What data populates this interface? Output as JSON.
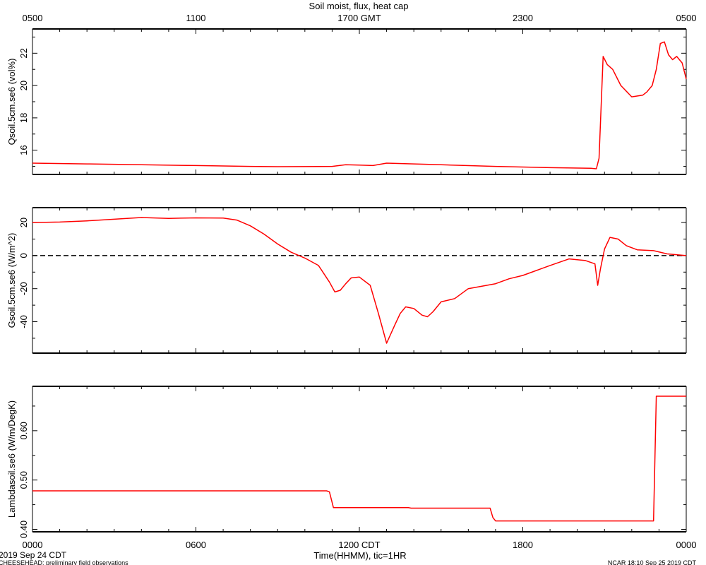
{
  "title": "Soil moist, flux, heat cap",
  "top_axis": {
    "ticks": [
      {
        "h": 0,
        "label": "0500"
      },
      {
        "h": 6,
        "label": "1100"
      },
      {
        "h": 12,
        "label": "1700 GMT"
      },
      {
        "h": 18,
        "label": "2300"
      },
      {
        "h": 24,
        "label": "0500"
      }
    ]
  },
  "bottom_axis": {
    "ticks": [
      {
        "h": 0,
        "label": "0000"
      },
      {
        "h": 6,
        "label": "0600"
      },
      {
        "h": 12,
        "label": "1200 CDT"
      },
      {
        "h": 18,
        "label": "1800"
      },
      {
        "h": 24,
        "label": "0000"
      }
    ],
    "xlabel": "Time(HHMM), tic=1HR"
  },
  "footer": {
    "date_left": "2019 Sep 24 CDT",
    "project": "CHEESEHEAD: preliminary field observations",
    "stamp": "NCAR 18:10 Sep 25 2019 CDT"
  },
  "colors": {
    "series": "#ff0000",
    "axis": "#000000"
  },
  "chart_data": [
    {
      "type": "line",
      "ylabel": "Qsoil.5cm.se6 (vol%)",
      "xlim": [
        0,
        24
      ],
      "ylim": [
        14.5,
        23.5
      ],
      "yticks": [
        16,
        18,
        20,
        22
      ],
      "zero_line": false,
      "series": [
        {
          "x": [
            0,
            2,
            4,
            6,
            8,
            9,
            10.5,
            11,
            11.5,
            12,
            12.5,
            13,
            14,
            15,
            17,
            19,
            20.5,
            20.7,
            20.8,
            20.95,
            21.1,
            21.3,
            21.6,
            22,
            22.4,
            22.55,
            22.75,
            22.9,
            23.05,
            23.2,
            23.35,
            23.5,
            23.65,
            23.85,
            24
          ],
          "y": [
            15.2,
            15.15,
            15.1,
            15.05,
            15,
            14.98,
            14.99,
            15.0,
            15.1,
            15.08,
            15.05,
            15.2,
            15.15,
            15.1,
            15.0,
            14.92,
            14.88,
            14.85,
            15.5,
            21.8,
            21.3,
            21.0,
            20.0,
            19.3,
            19.4,
            19.6,
            20.0,
            21.0,
            22.6,
            22.7,
            21.9,
            21.6,
            21.8,
            21.4,
            20.4
          ]
        }
      ]
    },
    {
      "type": "line",
      "ylabel": "Gsoil.5cm.se6 (W/m^2)",
      "xlim": [
        0,
        24
      ],
      "ylim": [
        -59,
        29
      ],
      "yticks": [
        20,
        0,
        -20,
        -40
      ],
      "zero_line": true,
      "series": [
        {
          "x": [
            0,
            1,
            2,
            3,
            4,
            5,
            6,
            7,
            7.5,
            8,
            8.5,
            9,
            9.5,
            10,
            10.5,
            10.9,
            11.1,
            11.3,
            11.5,
            11.7,
            12,
            12.4,
            12.7,
            13,
            13.3,
            13.5,
            13.7,
            14,
            14.3,
            14.5,
            14.7,
            15,
            15.5,
            16,
            16.5,
            17,
            17.5,
            18,
            19,
            19.7,
            20.3,
            20.65,
            20.75,
            20.85,
            21,
            21.2,
            21.5,
            21.8,
            22.2,
            22.8,
            23.3,
            24
          ],
          "y": [
            20,
            20.3,
            21,
            22,
            23,
            22.5,
            22.8,
            22.7,
            21.5,
            18,
            13,
            7,
            2,
            -1.5,
            -6,
            -16,
            -22,
            -21,
            -17,
            -13.5,
            -13,
            -18,
            -35,
            -53,
            -42,
            -35,
            -31,
            -32,
            -36,
            -37,
            -34,
            -28,
            -26,
            -20,
            -18.5,
            -17,
            -14,
            -12,
            -6,
            -2,
            -3,
            -5,
            -18,
            -8,
            4,
            11,
            10,
            6,
            3.5,
            3,
            1,
            0
          ]
        }
      ]
    },
    {
      "type": "line",
      "ylabel": "Lambdasoil.se6 (W/m/DegK)",
      "xlim": [
        0,
        24
      ],
      "ylim": [
        0.395,
        0.69
      ],
      "yticks": [
        0.4,
        0.5,
        0.6
      ],
      "zero_line": false,
      "series": [
        {
          "x": [
            0,
            10.8,
            10.9,
            11.05,
            13.8,
            13.9,
            16.8,
            16.9,
            17.0,
            22.8,
            22.9,
            24
          ],
          "y": [
            0.478,
            0.478,
            0.476,
            0.444,
            0.444,
            0.443,
            0.443,
            0.424,
            0.417,
            0.417,
            0.67,
            0.67
          ]
        }
      ]
    }
  ]
}
